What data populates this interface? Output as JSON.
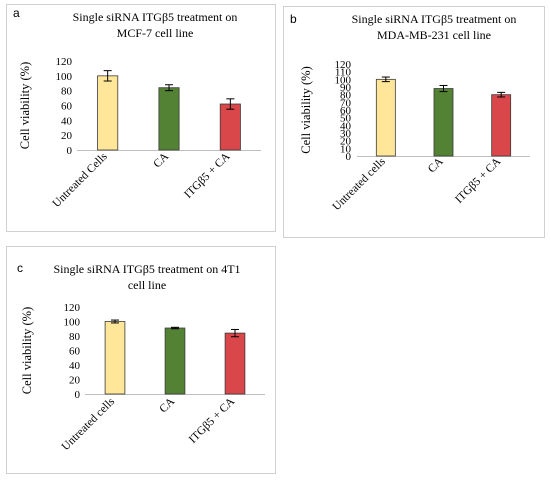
{
  "chart_data": [
    {
      "panel_label": "a",
      "type": "bar",
      "title_lines": [
        "Single  siRNA ITGβ5 treatment  on",
        "MCF-7 cell line"
      ],
      "ylabel": "Cell viability (%)",
      "ylim": [
        0,
        120
      ],
      "yticks": [
        "0",
        "20",
        "40",
        "60",
        "80",
        "100",
        "120"
      ],
      "categories": [
        "Untreated Cells",
        "CA",
        "ITGβ5 + CA"
      ],
      "values": [
        100,
        84,
        62
      ],
      "errors": [
        7,
        4,
        7
      ],
      "colors": [
        "#ffe699",
        "#548235",
        "#d9474b"
      ]
    },
    {
      "panel_label": "b",
      "type": "bar",
      "title_lines": [
        "Single  siRNA ITGβ5 treatment  on",
        "MDA-MB-231  cell line"
      ],
      "ylabel": "Cell viability (%)",
      "ylim": [
        0,
        120
      ],
      "yticks": [
        "0",
        "10",
        "20",
        "30",
        "40",
        "50",
        "60",
        "70",
        "80",
        "90",
        "100",
        "110",
        "120"
      ],
      "categories": [
        "Untreated cells",
        "CA",
        "ITGβ5 + CA"
      ],
      "values": [
        100,
        88,
        80
      ],
      "errors": [
        3,
        4,
        3
      ],
      "colors": [
        "#ffe699",
        "#548235",
        "#d9474b"
      ]
    },
    {
      "panel_label": "c",
      "type": "bar",
      "title_lines": [
        "Single  siRNA ITGβ5 treatment  on 4T1",
        "cell line"
      ],
      "ylabel": "Cell  viability  (%)",
      "ylim": [
        0,
        120
      ],
      "yticks": [
        "0",
        "20",
        "40",
        "60",
        "80",
        "100",
        "120"
      ],
      "categories": [
        "Untreated cells",
        "CA",
        "ITGβ5 + CA"
      ],
      "values": [
        100,
        91,
        84
      ],
      "errors": [
        2,
        1,
        5
      ],
      "colors": [
        "#ffe699",
        "#548235",
        "#d9474b"
      ]
    }
  ]
}
